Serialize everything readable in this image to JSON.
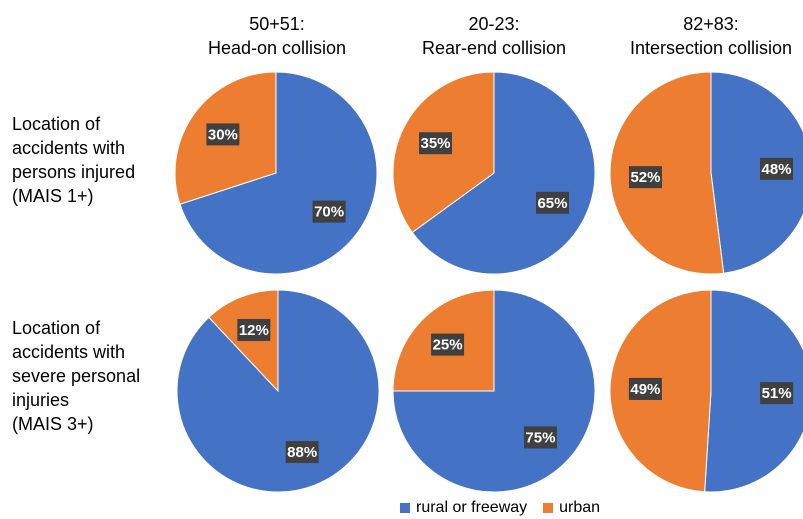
{
  "colors": {
    "rural_or_freeway": "#4472C4",
    "urban": "#ED7D31",
    "label_box": "#404040"
  },
  "columns": [
    {
      "code": "50+51:",
      "name": "Head-on collision"
    },
    {
      "code": "20-23:",
      "name": "Rear-end collision"
    },
    {
      "code": "82+83:",
      "name": "Intersection collision"
    }
  ],
  "rows": [
    {
      "label": "Location of\naccidents with\npersons injured\n(MAIS 1+)"
    },
    {
      "label": "Location of\naccidents with\nsevere personal\ninjuries\n(MAIS 3+)"
    }
  ],
  "legend": {
    "items": [
      {
        "label": "rural or freeway",
        "color_key": "rural_or_freeway"
      },
      {
        "label": "urban",
        "color_key": "urban"
      }
    ]
  },
  "chart_data": [
    {
      "type": "pie",
      "column": "Head-on collision",
      "row": "MAIS 1+",
      "categories": [
        "rural or freeway",
        "urban"
      ],
      "values": [
        70,
        30
      ],
      "labels": [
        "70%",
        "30%"
      ]
    },
    {
      "type": "pie",
      "column": "Rear-end collision",
      "row": "MAIS 1+",
      "categories": [
        "rural or freeway",
        "urban"
      ],
      "values": [
        65,
        35
      ],
      "labels": [
        "65%",
        "35%"
      ]
    },
    {
      "type": "pie",
      "column": "Intersection collision",
      "row": "MAIS 1+",
      "categories": [
        "rural or freeway",
        "urban"
      ],
      "values": [
        48,
        52
      ],
      "labels": [
        "48%",
        "52%"
      ]
    },
    {
      "type": "pie",
      "column": "Head-on collision",
      "row": "MAIS 3+",
      "categories": [
        "rural or freeway",
        "urban"
      ],
      "values": [
        88,
        12
      ],
      "labels": [
        "88%",
        "12%"
      ]
    },
    {
      "type": "pie",
      "column": "Rear-end collision",
      "row": "MAIS 3+",
      "categories": [
        "rural or freeway",
        "urban"
      ],
      "values": [
        75,
        25
      ],
      "labels": [
        "75%",
        "25%"
      ]
    },
    {
      "type": "pie",
      "column": "Intersection collision",
      "row": "MAIS 3+",
      "categories": [
        "rural or freeway",
        "urban"
      ],
      "values": [
        51,
        49
      ],
      "labels": [
        "51%",
        "49%"
      ]
    }
  ]
}
